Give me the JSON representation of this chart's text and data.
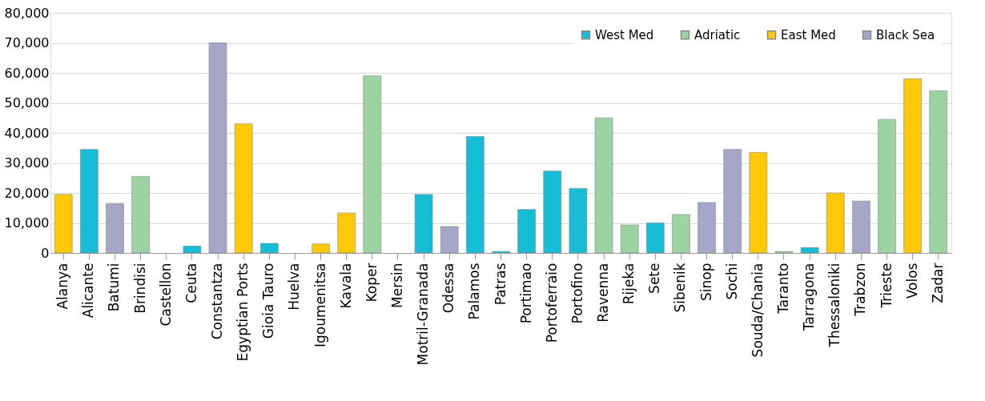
{
  "chart_data": {
    "type": "bar",
    "categories": [
      "Alanya",
      "Alicante",
      "Batumi",
      "Brindisi",
      "Castellon",
      "Ceuta",
      "Constantza",
      "Egyptian Ports",
      "Gioia Tauro",
      "Huelva",
      "Igoumenitsa",
      "Kavala",
      "Koper",
      "Mersin",
      "Motril-Granada",
      "Odessa",
      "Palamos",
      "Patras",
      "Portimao",
      "Portoferraio",
      "Portofino",
      "Ravenna",
      "Rijeka",
      "Sete",
      "Sibenik",
      "Sinop",
      "Sochi",
      "Souda/Chania",
      "Taranto",
      "Tarragona",
      "Thessaloniki",
      "Trabzon",
      "Trieste",
      "Volos",
      "Zadar"
    ],
    "series": [
      {
        "name": "West Med",
        "color": "#17bcd6",
        "values": [
          null,
          34500,
          null,
          null,
          null,
          2300,
          null,
          null,
          3200,
          null,
          null,
          null,
          null,
          null,
          19500,
          null,
          38800,
          500,
          14500,
          27300,
          21500,
          null,
          null,
          10000,
          null,
          null,
          null,
          null,
          null,
          1800,
          null,
          null,
          null,
          null,
          null
        ]
      },
      {
        "name": "Adriatic",
        "color": "#9bd3a3",
        "values": [
          null,
          null,
          null,
          25500,
          null,
          null,
          null,
          null,
          null,
          null,
          null,
          null,
          59000,
          null,
          null,
          null,
          null,
          null,
          null,
          null,
          null,
          45000,
          9300,
          null,
          12800,
          null,
          null,
          null,
          500,
          null,
          null,
          null,
          44500,
          null,
          54000
        ]
      },
      {
        "name": "East Med",
        "color": "#ffc907",
        "values": [
          19500,
          null,
          null,
          null,
          null,
          null,
          null,
          43000,
          null,
          null,
          3000,
          13300,
          null,
          null,
          null,
          null,
          null,
          null,
          null,
          null,
          null,
          null,
          null,
          null,
          null,
          null,
          null,
          33500,
          null,
          null,
          20000,
          null,
          null,
          58000,
          null
        ]
      },
      {
        "name": "Black Sea",
        "color": "#a6a6c9",
        "values": [
          null,
          null,
          16500,
          null,
          null,
          null,
          70000,
          null,
          null,
          null,
          null,
          null,
          null,
          null,
          null,
          8800,
          null,
          null,
          null,
          null,
          null,
          null,
          null,
          null,
          null,
          16800,
          34500,
          null,
          null,
          null,
          null,
          17300,
          null,
          null,
          null
        ]
      }
    ],
    "ylim": [
      0,
      80000
    ],
    "yticks": [
      {
        "value": 0,
        "label": "0"
      },
      {
        "value": 10000,
        "label": "10,000"
      },
      {
        "value": 20000,
        "label": "20,000"
      },
      {
        "value": 30000,
        "label": "30,000"
      },
      {
        "value": 40000,
        "label": "40,000"
      },
      {
        "value": 50000,
        "label": "50,000"
      },
      {
        "value": 60000,
        "label": "60,000"
      },
      {
        "value": 70000,
        "label": "70,000"
      },
      {
        "value": 80000,
        "label": "80,000"
      }
    ],
    "grid": "y",
    "legend": "top right"
  }
}
